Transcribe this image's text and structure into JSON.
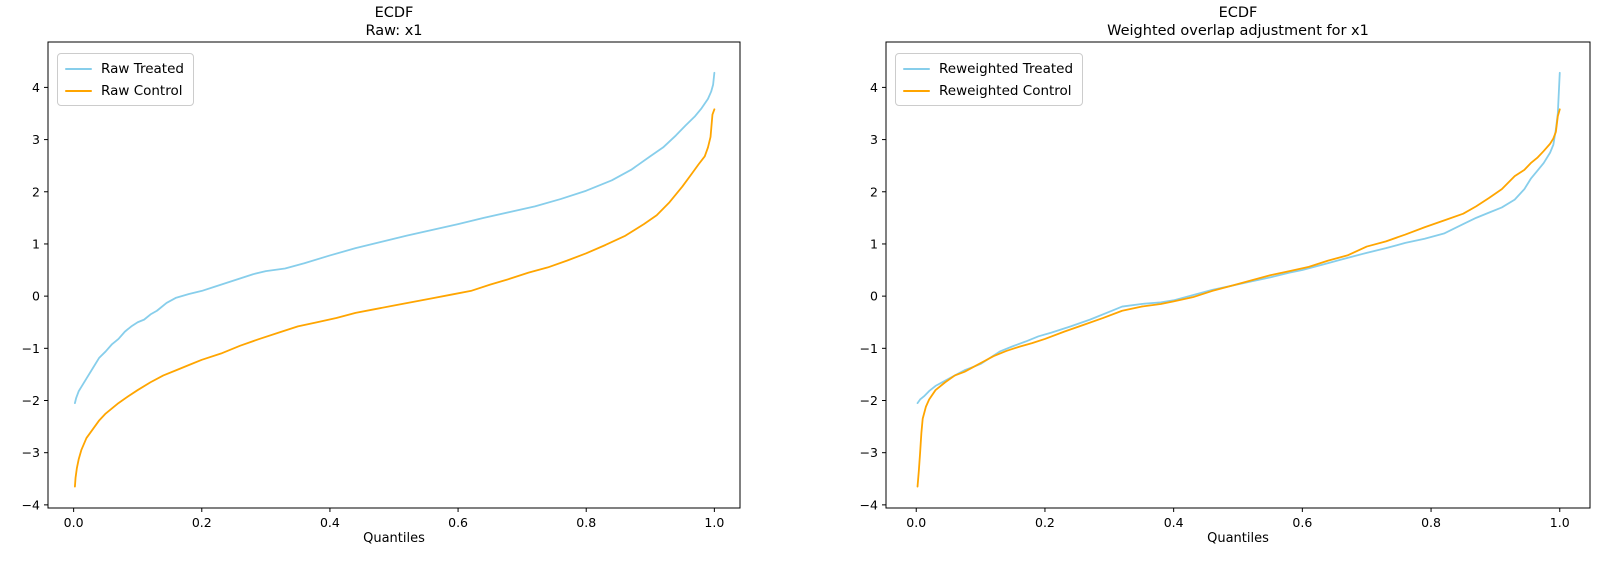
{
  "figure": {
    "background": "#ffffff"
  },
  "colors": {
    "treated": "#87CEEB",
    "control": "#FFA500",
    "spine": "#000000",
    "legend_border": "#cccccc"
  },
  "plots": [
    {
      "title_line1": "ECDF",
      "title_line2": "Raw: x1",
      "xlabel": "Quantiles",
      "legend": [
        {
          "label": "Raw Treated",
          "color": "#87CEEB"
        },
        {
          "label": "Raw Control",
          "color": "#FFA500"
        }
      ]
    },
    {
      "title_line1": "ECDF",
      "title_line2": "Weighted overlap adjustment for x1",
      "xlabel": "Quantiles",
      "legend": [
        {
          "label": "Reweighted Treated",
          "color": "#87CEEB"
        },
        {
          "label": "Reweighted Control",
          "color": "#FFA500"
        }
      ]
    }
  ],
  "chart_data": [
    {
      "type": "line",
      "title": "ECDF\nRaw: x1",
      "xlabel": "Quantiles",
      "ylabel": "",
      "grid": false,
      "legend_position": "upper left",
      "xlim": [
        -0.04,
        1.04
      ],
      "ylim": [
        -4.06,
        4.87
      ],
      "xticks": [
        0.0,
        0.2,
        0.4,
        0.6,
        0.8,
        1.0
      ],
      "xtick_labels": [
        "0.0",
        "0.2",
        "0.4",
        "0.6",
        "0.8",
        "1.0"
      ],
      "yticks": [
        -4,
        -3,
        -2,
        -1,
        0,
        1,
        2,
        3,
        4
      ],
      "ytick_labels": [
        "−4",
        "−3",
        "−2",
        "−1",
        "0",
        "1",
        "2",
        "3",
        "4"
      ],
      "series": [
        {
          "name": "Raw Treated",
          "color": "#87CEEB",
          "points": [
            [
              0.002,
              -2.05
            ],
            [
              0.004,
              -1.95
            ],
            [
              0.008,
              -1.82
            ],
            [
              0.012,
              -1.74
            ],
            [
              0.02,
              -1.58
            ],
            [
              0.03,
              -1.38
            ],
            [
              0.04,
              -1.18
            ],
            [
              0.05,
              -1.06
            ],
            [
              0.06,
              -0.92
            ],
            [
              0.07,
              -0.82
            ],
            [
              0.08,
              -0.68
            ],
            [
              0.09,
              -0.58
            ],
            [
              0.1,
              -0.5
            ],
            [
              0.11,
              -0.45
            ],
            [
              0.12,
              -0.35
            ],
            [
              0.13,
              -0.28
            ],
            [
              0.145,
              -0.13
            ],
            [
              0.16,
              -0.03
            ],
            [
              0.18,
              0.04
            ],
            [
              0.2,
              0.1
            ],
            [
              0.22,
              0.18
            ],
            [
              0.25,
              0.3
            ],
            [
              0.28,
              0.42
            ],
            [
              0.3,
              0.48
            ],
            [
              0.33,
              0.53
            ],
            [
              0.36,
              0.63
            ],
            [
              0.4,
              0.78
            ],
            [
              0.44,
              0.92
            ],
            [
              0.48,
              1.04
            ],
            [
              0.52,
              1.16
            ],
            [
              0.56,
              1.27
            ],
            [
              0.6,
              1.38
            ],
            [
              0.64,
              1.5
            ],
            [
              0.68,
              1.61
            ],
            [
              0.72,
              1.72
            ],
            [
              0.76,
              1.86
            ],
            [
              0.8,
              2.02
            ],
            [
              0.84,
              2.22
            ],
            [
              0.87,
              2.42
            ],
            [
              0.9,
              2.68
            ],
            [
              0.92,
              2.85
            ],
            [
              0.94,
              3.08
            ],
            [
              0.955,
              3.27
            ],
            [
              0.97,
              3.45
            ],
            [
              0.98,
              3.6
            ],
            [
              0.99,
              3.78
            ],
            [
              0.995,
              3.92
            ],
            [
              0.998,
              4.05
            ],
            [
              1.0,
              4.28
            ]
          ]
        },
        {
          "name": "Raw Control",
          "color": "#FFA500",
          "points": [
            [
              0.002,
              -3.65
            ],
            [
              0.003,
              -3.48
            ],
            [
              0.005,
              -3.3
            ],
            [
              0.008,
              -3.12
            ],
            [
              0.012,
              -2.95
            ],
            [
              0.02,
              -2.72
            ],
            [
              0.03,
              -2.55
            ],
            [
              0.04,
              -2.38
            ],
            [
              0.05,
              -2.25
            ],
            [
              0.06,
              -2.15
            ],
            [
              0.07,
              -2.05
            ],
            [
              0.085,
              -1.92
            ],
            [
              0.1,
              -1.8
            ],
            [
              0.12,
              -1.65
            ],
            [
              0.14,
              -1.52
            ],
            [
              0.16,
              -1.42
            ],
            [
              0.18,
              -1.32
            ],
            [
              0.2,
              -1.22
            ],
            [
              0.23,
              -1.1
            ],
            [
              0.26,
              -0.95
            ],
            [
              0.29,
              -0.82
            ],
            [
              0.32,
              -0.7
            ],
            [
              0.35,
              -0.58
            ],
            [
              0.38,
              -0.5
            ],
            [
              0.41,
              -0.42
            ],
            [
              0.44,
              -0.32
            ],
            [
              0.47,
              -0.25
            ],
            [
              0.5,
              -0.18
            ],
            [
              0.53,
              -0.11
            ],
            [
              0.56,
              -0.04
            ],
            [
              0.59,
              0.03
            ],
            [
              0.62,
              0.1
            ],
            [
              0.65,
              0.22
            ],
            [
              0.68,
              0.33
            ],
            [
              0.71,
              0.45
            ],
            [
              0.74,
              0.55
            ],
            [
              0.77,
              0.68
            ],
            [
              0.8,
              0.82
            ],
            [
              0.83,
              0.98
            ],
            [
              0.86,
              1.15
            ],
            [
              0.89,
              1.38
            ],
            [
              0.91,
              1.55
            ],
            [
              0.93,
              1.8
            ],
            [
              0.95,
              2.1
            ],
            [
              0.965,
              2.35
            ],
            [
              0.975,
              2.52
            ],
            [
              0.985,
              2.68
            ],
            [
              0.99,
              2.85
            ],
            [
              0.994,
              3.05
            ],
            [
              0.997,
              3.48
            ],
            [
              1.0,
              3.58
            ]
          ]
        }
      ]
    },
    {
      "type": "line",
      "title": "ECDF\nWeighted overlap adjustment for x1",
      "xlabel": "Quantiles",
      "ylabel": "",
      "grid": false,
      "legend_position": "upper left",
      "xlim": [
        -0.047,
        1.047
      ],
      "ylim": [
        -4.06,
        4.87
      ],
      "xticks": [
        0.0,
        0.2,
        0.4,
        0.6,
        0.8,
        1.0
      ],
      "xtick_labels": [
        "0.0",
        "0.2",
        "0.4",
        "0.6",
        "0.8",
        "1.0"
      ],
      "yticks": [
        -4,
        -3,
        -2,
        -1,
        0,
        1,
        2,
        3,
        4
      ],
      "ytick_labels": [
        "−4",
        "−3",
        "−2",
        "−1",
        "0",
        "1",
        "2",
        "3",
        "4"
      ],
      "series": [
        {
          "name": "Reweighted Treated",
          "color": "#87CEEB",
          "points": [
            [
              0.002,
              -2.05
            ],
            [
              0.006,
              -1.98
            ],
            [
              0.012,
              -1.92
            ],
            [
              0.02,
              -1.82
            ],
            [
              0.03,
              -1.72
            ],
            [
              0.045,
              -1.62
            ],
            [
              0.06,
              -1.52
            ],
            [
              0.075,
              -1.42
            ],
            [
              0.09,
              -1.35
            ],
            [
              0.1,
              -1.3
            ],
            [
              0.115,
              -1.18
            ],
            [
              0.13,
              -1.06
            ],
            [
              0.15,
              -0.96
            ],
            [
              0.17,
              -0.87
            ],
            [
              0.19,
              -0.77
            ],
            [
              0.21,
              -0.7
            ],
            [
              0.24,
              -0.58
            ],
            [
              0.27,
              -0.45
            ],
            [
              0.3,
              -0.3
            ],
            [
              0.32,
              -0.2
            ],
            [
              0.35,
              -0.15
            ],
            [
              0.38,
              -0.12
            ],
            [
              0.4,
              -0.08
            ],
            [
              0.43,
              0.02
            ],
            [
              0.46,
              0.12
            ],
            [
              0.49,
              0.2
            ],
            [
              0.52,
              0.28
            ],
            [
              0.55,
              0.36
            ],
            [
              0.58,
              0.45
            ],
            [
              0.6,
              0.5
            ],
            [
              0.63,
              0.6
            ],
            [
              0.66,
              0.7
            ],
            [
              0.7,
              0.83
            ],
            [
              0.73,
              0.92
            ],
            [
              0.76,
              1.02
            ],
            [
              0.79,
              1.1
            ],
            [
              0.82,
              1.2
            ],
            [
              0.85,
              1.38
            ],
            [
              0.87,
              1.5
            ],
            [
              0.89,
              1.6
            ],
            [
              0.91,
              1.7
            ],
            [
              0.93,
              1.85
            ],
            [
              0.945,
              2.05
            ],
            [
              0.955,
              2.25
            ],
            [
              0.965,
              2.4
            ],
            [
              0.975,
              2.55
            ],
            [
              0.985,
              2.75
            ],
            [
              0.99,
              2.9
            ],
            [
              0.994,
              3.2
            ],
            [
              0.997,
              3.5
            ],
            [
              1.0,
              4.28
            ]
          ]
        },
        {
          "name": "Reweighted Control",
          "color": "#FFA500",
          "points": [
            [
              0.002,
              -3.65
            ],
            [
              0.004,
              -3.35
            ],
            [
              0.006,
              -3.0
            ],
            [
              0.008,
              -2.62
            ],
            [
              0.01,
              -2.35
            ],
            [
              0.015,
              -2.12
            ],
            [
              0.02,
              -1.98
            ],
            [
              0.03,
              -1.8
            ],
            [
              0.045,
              -1.65
            ],
            [
              0.06,
              -1.52
            ],
            [
              0.075,
              -1.45
            ],
            [
              0.09,
              -1.35
            ],
            [
              0.105,
              -1.25
            ],
            [
              0.12,
              -1.15
            ],
            [
              0.14,
              -1.05
            ],
            [
              0.16,
              -0.97
            ],
            [
              0.18,
              -0.9
            ],
            [
              0.2,
              -0.82
            ],
            [
              0.23,
              -0.68
            ],
            [
              0.26,
              -0.55
            ],
            [
              0.29,
              -0.42
            ],
            [
              0.32,
              -0.28
            ],
            [
              0.35,
              -0.2
            ],
            [
              0.38,
              -0.15
            ],
            [
              0.4,
              -0.1
            ],
            [
              0.43,
              -0.02
            ],
            [
              0.46,
              0.1
            ],
            [
              0.49,
              0.2
            ],
            [
              0.52,
              0.3
            ],
            [
              0.55,
              0.4
            ],
            [
              0.58,
              0.48
            ],
            [
              0.61,
              0.56
            ],
            [
              0.64,
              0.68
            ],
            [
              0.67,
              0.78
            ],
            [
              0.7,
              0.95
            ],
            [
              0.73,
              1.05
            ],
            [
              0.76,
              1.18
            ],
            [
              0.79,
              1.32
            ],
            [
              0.82,
              1.45
            ],
            [
              0.85,
              1.58
            ],
            [
              0.87,
              1.72
            ],
            [
              0.89,
              1.88
            ],
            [
              0.91,
              2.05
            ],
            [
              0.93,
              2.3
            ],
            [
              0.945,
              2.42
            ],
            [
              0.955,
              2.55
            ],
            [
              0.965,
              2.65
            ],
            [
              0.975,
              2.78
            ],
            [
              0.985,
              2.92
            ],
            [
              0.99,
              3.02
            ],
            [
              0.994,
              3.15
            ],
            [
              0.997,
              3.45
            ],
            [
              1.0,
              3.58
            ]
          ]
        }
      ]
    }
  ]
}
